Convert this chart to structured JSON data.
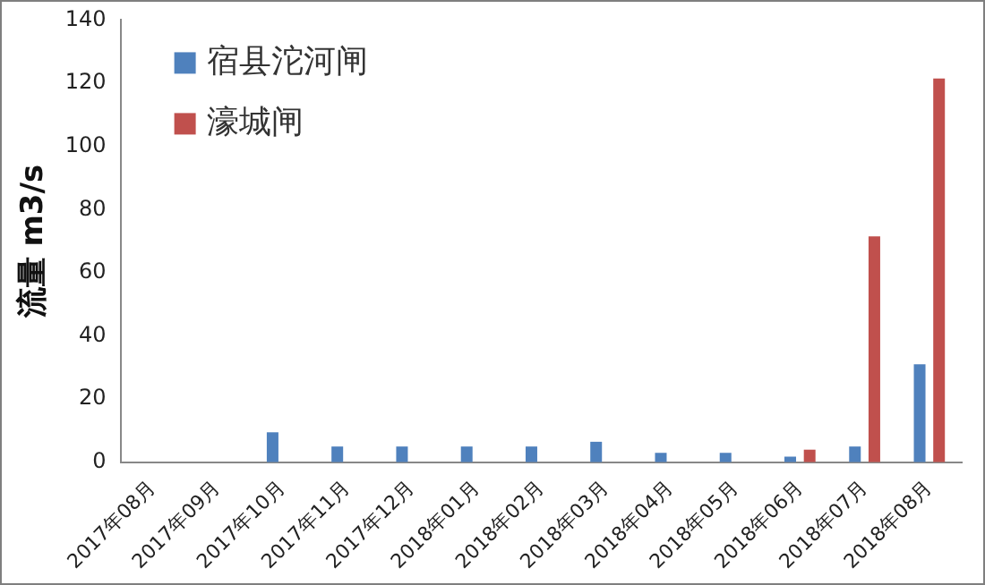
{
  "chart_data": {
    "type": "bar",
    "ylabel": "流量 m3/s",
    "categories": [
      "2017年08月",
      "2017年09月",
      "2017年10月",
      "2017年11月",
      "2017年12月",
      "2018年01月",
      "2018年02月",
      "2018年03月",
      "2018年04月",
      "2018年05月",
      "2018年06月",
      "2018年07月",
      "2018年08月"
    ],
    "series": [
      {
        "name": "宿县沱河闸",
        "color": "#4f81bd",
        "values": [
          null,
          null,
          9.5,
          5,
          5,
          5,
          5,
          6.5,
          3,
          3,
          1.8,
          5,
          31
        ]
      },
      {
        "name": "濠城闸",
        "color": "#c0504d",
        "values": [
          null,
          null,
          null,
          null,
          null,
          null,
          null,
          null,
          null,
          null,
          4,
          71.5,
          121.5
        ]
      }
    ],
    "ylim": [
      0,
      140
    ],
    "yticks": [
      0,
      20,
      40,
      60,
      80,
      100,
      120,
      140
    ],
    "grid": false,
    "legend": "top left"
  }
}
